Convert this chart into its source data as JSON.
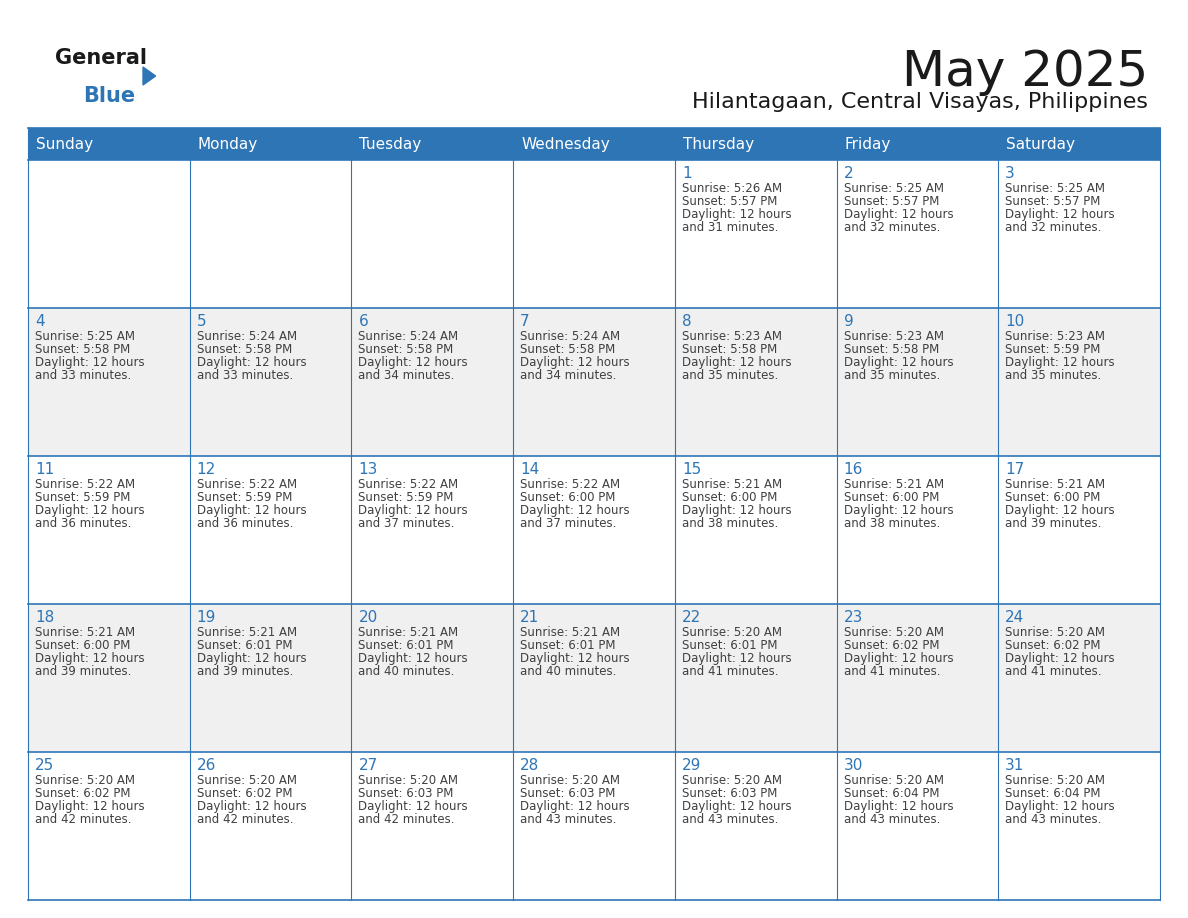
{
  "title": "May 2025",
  "subtitle": "Hilantagaan, Central Visayas, Philippines",
  "days_of_week": [
    "Sunday",
    "Monday",
    "Tuesday",
    "Wednesday",
    "Thursday",
    "Friday",
    "Saturday"
  ],
  "header_bg_color": "#2E75B6",
  "header_text_color": "#FFFFFF",
  "cell_bg_color": "#FFFFFF",
  "alt_cell_bg_color": "#F0F0F0",
  "day_number_color": "#2E75B6",
  "cell_text_color": "#404040",
  "grid_color": "#2E75B6",
  "title_color": "#1A1A1A",
  "subtitle_color": "#1A1A1A",
  "logo_text1": "General",
  "logo_text2": "Blue",
  "logo_triangle_color": "#2E75B6",
  "logo_text1_color": "#1A1A1A",
  "calendar": [
    [
      {
        "day": 0,
        "sunrise": "",
        "sunset": "",
        "daylight": ""
      },
      {
        "day": 0,
        "sunrise": "",
        "sunset": "",
        "daylight": ""
      },
      {
        "day": 0,
        "sunrise": "",
        "sunset": "",
        "daylight": ""
      },
      {
        "day": 0,
        "sunrise": "",
        "sunset": "",
        "daylight": ""
      },
      {
        "day": 1,
        "sunrise": "5:26 AM",
        "sunset": "5:57 PM",
        "daylight": "12 hours and 31 minutes."
      },
      {
        "day": 2,
        "sunrise": "5:25 AM",
        "sunset": "5:57 PM",
        "daylight": "12 hours and 32 minutes."
      },
      {
        "day": 3,
        "sunrise": "5:25 AM",
        "sunset": "5:57 PM",
        "daylight": "12 hours and 32 minutes."
      }
    ],
    [
      {
        "day": 4,
        "sunrise": "5:25 AM",
        "sunset": "5:58 PM",
        "daylight": "12 hours and 33 minutes."
      },
      {
        "day": 5,
        "sunrise": "5:24 AM",
        "sunset": "5:58 PM",
        "daylight": "12 hours and 33 minutes."
      },
      {
        "day": 6,
        "sunrise": "5:24 AM",
        "sunset": "5:58 PM",
        "daylight": "12 hours and 34 minutes."
      },
      {
        "day": 7,
        "sunrise": "5:24 AM",
        "sunset": "5:58 PM",
        "daylight": "12 hours and 34 minutes."
      },
      {
        "day": 8,
        "sunrise": "5:23 AM",
        "sunset": "5:58 PM",
        "daylight": "12 hours and 35 minutes."
      },
      {
        "day": 9,
        "sunrise": "5:23 AM",
        "sunset": "5:58 PM",
        "daylight": "12 hours and 35 minutes."
      },
      {
        "day": 10,
        "sunrise": "5:23 AM",
        "sunset": "5:59 PM",
        "daylight": "12 hours and 35 minutes."
      }
    ],
    [
      {
        "day": 11,
        "sunrise": "5:22 AM",
        "sunset": "5:59 PM",
        "daylight": "12 hours and 36 minutes."
      },
      {
        "day": 12,
        "sunrise": "5:22 AM",
        "sunset": "5:59 PM",
        "daylight": "12 hours and 36 minutes."
      },
      {
        "day": 13,
        "sunrise": "5:22 AM",
        "sunset": "5:59 PM",
        "daylight": "12 hours and 37 minutes."
      },
      {
        "day": 14,
        "sunrise": "5:22 AM",
        "sunset": "6:00 PM",
        "daylight": "12 hours and 37 minutes."
      },
      {
        "day": 15,
        "sunrise": "5:21 AM",
        "sunset": "6:00 PM",
        "daylight": "12 hours and 38 minutes."
      },
      {
        "day": 16,
        "sunrise": "5:21 AM",
        "sunset": "6:00 PM",
        "daylight": "12 hours and 38 minutes."
      },
      {
        "day": 17,
        "sunrise": "5:21 AM",
        "sunset": "6:00 PM",
        "daylight": "12 hours and 39 minutes."
      }
    ],
    [
      {
        "day": 18,
        "sunrise": "5:21 AM",
        "sunset": "6:00 PM",
        "daylight": "12 hours and 39 minutes."
      },
      {
        "day": 19,
        "sunrise": "5:21 AM",
        "sunset": "6:01 PM",
        "daylight": "12 hours and 39 minutes."
      },
      {
        "day": 20,
        "sunrise": "5:21 AM",
        "sunset": "6:01 PM",
        "daylight": "12 hours and 40 minutes."
      },
      {
        "day": 21,
        "sunrise": "5:21 AM",
        "sunset": "6:01 PM",
        "daylight": "12 hours and 40 minutes."
      },
      {
        "day": 22,
        "sunrise": "5:20 AM",
        "sunset": "6:01 PM",
        "daylight": "12 hours and 41 minutes."
      },
      {
        "day": 23,
        "sunrise": "5:20 AM",
        "sunset": "6:02 PM",
        "daylight": "12 hours and 41 minutes."
      },
      {
        "day": 24,
        "sunrise": "5:20 AM",
        "sunset": "6:02 PM",
        "daylight": "12 hours and 41 minutes."
      }
    ],
    [
      {
        "day": 25,
        "sunrise": "5:20 AM",
        "sunset": "6:02 PM",
        "daylight": "12 hours and 42 minutes."
      },
      {
        "day": 26,
        "sunrise": "5:20 AM",
        "sunset": "6:02 PM",
        "daylight": "12 hours and 42 minutes."
      },
      {
        "day": 27,
        "sunrise": "5:20 AM",
        "sunset": "6:03 PM",
        "daylight": "12 hours and 42 minutes."
      },
      {
        "day": 28,
        "sunrise": "5:20 AM",
        "sunset": "6:03 PM",
        "daylight": "12 hours and 43 minutes."
      },
      {
        "day": 29,
        "sunrise": "5:20 AM",
        "sunset": "6:03 PM",
        "daylight": "12 hours and 43 minutes."
      },
      {
        "day": 30,
        "sunrise": "5:20 AM",
        "sunset": "6:04 PM",
        "daylight": "12 hours and 43 minutes."
      },
      {
        "day": 31,
        "sunrise": "5:20 AM",
        "sunset": "6:04 PM",
        "daylight": "12 hours and 43 minutes."
      }
    ]
  ]
}
